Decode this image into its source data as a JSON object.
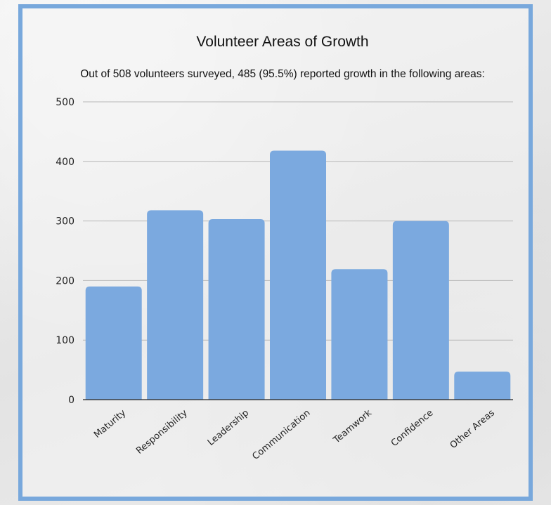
{
  "chart_data": {
    "type": "bar",
    "title": "Volunteer Areas of Growth",
    "subtitle": "Out of 508 volunteers surveyed, 485 (95.5%) reported growth in the following areas:",
    "categories": [
      "Maturity",
      "Responsibility",
      "Leadership",
      "Communication",
      "Teamwork",
      "Confidence",
      "Other Areas"
    ],
    "values": [
      190,
      318,
      303,
      418,
      219,
      300,
      47
    ],
    "ylim": [
      0,
      500
    ],
    "yticks": [
      "0",
      "100",
      "200",
      "300",
      "400",
      "500"
    ],
    "xlabel": "",
    "ylabel": "",
    "grid": true,
    "legend": "none",
    "bar_color": "#7ba9df",
    "frame_color": "#78a8dc"
  }
}
